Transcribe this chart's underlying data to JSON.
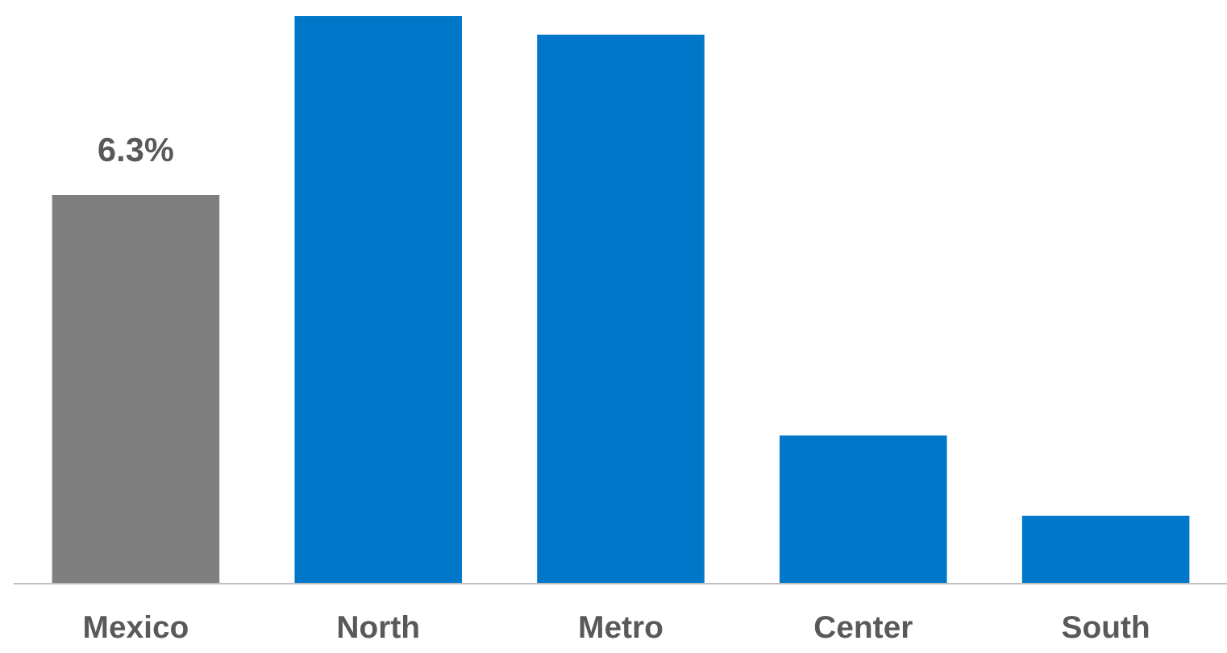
{
  "chart_data": {
    "type": "bar",
    "categories": [
      "Mexico",
      "North",
      "Metro",
      "Center",
      "South"
    ],
    "values": [
      6.3,
      9.2,
      8.9,
      2.4,
      1.1
    ],
    "colors": [
      "#7f7f7f",
      "#0077c8",
      "#0077c8",
      "#0077c8",
      "#0077c8"
    ],
    "value_labels": [
      "6.3%",
      null,
      null,
      null,
      null
    ],
    "grid": false,
    "legend": false
  }
}
